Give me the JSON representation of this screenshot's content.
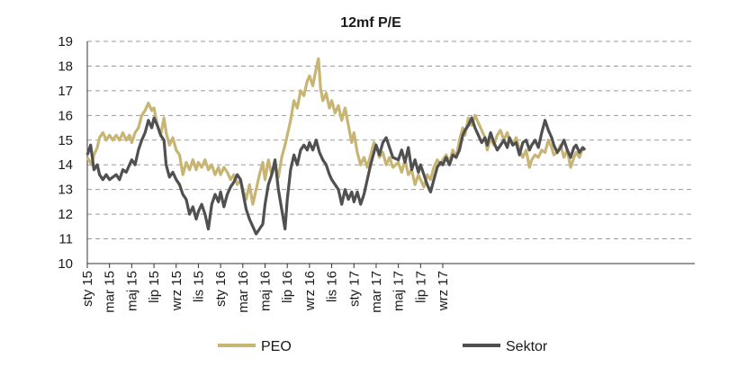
{
  "chart_data": {
    "type": "line",
    "title": "12mf P/E",
    "xlabel": "",
    "ylabel": "",
    "ylim": [
      10,
      19
    ],
    "yticks": [
      10,
      11,
      12,
      13,
      14,
      15,
      16,
      17,
      18,
      19
    ],
    "grid": "horizontal dashed",
    "legend_position": "bottom",
    "x_tick_labels": [
      "sty 15",
      "mar 15",
      "maj 15",
      "lip 15",
      "wrz 15",
      "lis 15",
      "sty 16",
      "mar 16",
      "maj 16",
      "lip 16",
      "wrz 16",
      "lis 16",
      "sty 17",
      "mar 17",
      "maj 17",
      "lip 17",
      "wrz 17"
    ],
    "x_unit": "months since sty 15 (index of monthly ticks)",
    "series": [
      {
        "name": "PEO",
        "color": "#c8b574",
        "points": [
          [
            0.0,
            14.3
          ],
          [
            0.2,
            14.0
          ],
          [
            0.3,
            14.4
          ],
          [
            0.45,
            14.7
          ],
          [
            0.55,
            15.1
          ],
          [
            0.7,
            15.3
          ],
          [
            0.85,
            15.0
          ],
          [
            1.0,
            15.2
          ],
          [
            1.15,
            15.0
          ],
          [
            1.3,
            15.2
          ],
          [
            1.45,
            15.0
          ],
          [
            1.6,
            15.3
          ],
          [
            1.75,
            15.0
          ],
          [
            1.9,
            15.2
          ],
          [
            2.0,
            14.9
          ],
          [
            2.15,
            15.3
          ],
          [
            2.3,
            15.5
          ],
          [
            2.45,
            16.0
          ],
          [
            2.6,
            16.2
          ],
          [
            2.75,
            16.5
          ],
          [
            2.9,
            16.2
          ],
          [
            3.0,
            16.3
          ],
          [
            3.15,
            15.6
          ],
          [
            3.3,
            15.2
          ],
          [
            3.45,
            15.9
          ],
          [
            3.55,
            15.3
          ],
          [
            3.7,
            14.8
          ],
          [
            3.85,
            15.1
          ],
          [
            4.0,
            14.6
          ],
          [
            4.15,
            14.4
          ],
          [
            4.3,
            13.6
          ],
          [
            4.45,
            14.1
          ],
          [
            4.6,
            13.8
          ],
          [
            4.75,
            14.2
          ],
          [
            4.9,
            13.8
          ],
          [
            5.0,
            14.1
          ],
          [
            5.15,
            13.9
          ],
          [
            5.3,
            14.2
          ],
          [
            5.45,
            13.8
          ],
          [
            5.6,
            14.0
          ],
          [
            5.75,
            13.6
          ],
          [
            5.9,
            13.9
          ],
          [
            6.0,
            13.6
          ],
          [
            6.15,
            13.9
          ],
          [
            6.3,
            13.7
          ],
          [
            6.45,
            13.4
          ],
          [
            6.6,
            13.6
          ],
          [
            6.75,
            13.2
          ],
          [
            6.9,
            13.4
          ],
          [
            7.0,
            13.0
          ],
          [
            7.15,
            12.6
          ],
          [
            7.3,
            13.2
          ],
          [
            7.45,
            12.4
          ],
          [
            7.6,
            13.0
          ],
          [
            7.75,
            13.6
          ],
          [
            7.9,
            14.1
          ],
          [
            8.0,
            13.4
          ],
          [
            8.15,
            14.2
          ],
          [
            8.3,
            13.6
          ],
          [
            8.45,
            14.0
          ],
          [
            8.6,
            13.5
          ],
          [
            8.75,
            14.3
          ],
          [
            8.9,
            14.8
          ],
          [
            9.0,
            15.2
          ],
          [
            9.15,
            15.8
          ],
          [
            9.3,
            16.6
          ],
          [
            9.45,
            16.3
          ],
          [
            9.6,
            17.0
          ],
          [
            9.75,
            16.8
          ],
          [
            9.9,
            17.4
          ],
          [
            10.0,
            17.6
          ],
          [
            10.15,
            17.2
          ],
          [
            10.3,
            17.9
          ],
          [
            10.4,
            18.3
          ],
          [
            10.5,
            17.1
          ],
          [
            10.6,
            16.6
          ],
          [
            10.75,
            16.9
          ],
          [
            10.9,
            16.3
          ],
          [
            11.0,
            16.6
          ],
          [
            11.15,
            16.1
          ],
          [
            11.3,
            16.4
          ],
          [
            11.45,
            15.8
          ],
          [
            11.6,
            16.3
          ],
          [
            11.75,
            15.6
          ],
          [
            11.9,
            14.9
          ],
          [
            12.0,
            15.3
          ],
          [
            12.15,
            14.5
          ],
          [
            12.3,
            14.0
          ],
          [
            12.45,
            14.3
          ],
          [
            12.6,
            13.9
          ],
          [
            12.75,
            14.4
          ],
          [
            12.9,
            14.9
          ],
          [
            13.0,
            14.8
          ],
          [
            13.15,
            14.3
          ],
          [
            13.3,
            14.5
          ],
          [
            13.45,
            14.0
          ],
          [
            13.6,
            14.3
          ],
          [
            13.75,
            13.9
          ],
          [
            14.0,
            14.1
          ],
          [
            14.15,
            13.7
          ],
          [
            14.3,
            14.2
          ],
          [
            14.45,
            13.6
          ],
          [
            14.6,
            13.8
          ],
          [
            14.75,
            13.2
          ],
          [
            14.9,
            13.6
          ],
          [
            15.0,
            13.4
          ],
          [
            15.15,
            13.1
          ],
          [
            15.3,
            13.6
          ],
          [
            15.45,
            13.4
          ],
          [
            15.6,
            13.9
          ],
          [
            15.75,
            14.2
          ],
          [
            15.9,
            14.0
          ],
          [
            16.0,
            14.2
          ],
          [
            16.15,
            14.4
          ],
          [
            16.3,
            14.1
          ],
          [
            16.45,
            14.6
          ],
          [
            16.6,
            14.3
          ],
          [
            16.75,
            15.0
          ],
          [
            16.9,
            15.5
          ],
          [
            17.0,
            15.2
          ],
          [
            17.15,
            15.9
          ],
          [
            17.3,
            15.6
          ],
          [
            17.45,
            16.0
          ],
          [
            17.6,
            15.7
          ],
          [
            17.75,
            15.4
          ],
          [
            17.9,
            15.1
          ],
          [
            18.0,
            14.6
          ],
          [
            18.15,
            15.1
          ],
          [
            18.3,
            14.8
          ],
          [
            18.45,
            15.2
          ],
          [
            18.6,
            15.4
          ],
          [
            18.75,
            15.0
          ],
          [
            18.9,
            15.3
          ],
          [
            19.0,
            15.0
          ],
          [
            19.15,
            14.8
          ],
          [
            19.3,
            15.1
          ],
          [
            19.45,
            14.6
          ],
          [
            19.6,
            14.3
          ],
          [
            19.75,
            14.6
          ],
          [
            19.9,
            13.9
          ],
          [
            20.0,
            14.2
          ],
          [
            20.15,
            14.4
          ],
          [
            20.3,
            14.3
          ],
          [
            20.45,
            14.6
          ],
          [
            20.6,
            14.5
          ],
          [
            20.75,
            15.0
          ],
          [
            20.9,
            14.7
          ],
          [
            21.0,
            14.4
          ],
          [
            21.15,
            14.5
          ],
          [
            21.3,
            14.8
          ],
          [
            21.45,
            14.3
          ],
          [
            21.6,
            14.6
          ],
          [
            21.75,
            13.9
          ],
          [
            21.9,
            14.3
          ],
          [
            22.0,
            14.5
          ],
          [
            22.15,
            14.3
          ],
          [
            22.3,
            14.7
          ],
          [
            22.4,
            14.6
          ]
        ]
      },
      {
        "name": "Sektor",
        "color": "#505050",
        "points": [
          [
            0.0,
            14.4
          ],
          [
            0.15,
            14.8
          ],
          [
            0.3,
            13.8
          ],
          [
            0.45,
            14.0
          ],
          [
            0.55,
            13.6
          ],
          [
            0.7,
            13.4
          ],
          [
            0.85,
            13.6
          ],
          [
            1.0,
            13.4
          ],
          [
            1.15,
            13.5
          ],
          [
            1.3,
            13.6
          ],
          [
            1.45,
            13.4
          ],
          [
            1.6,
            13.8
          ],
          [
            1.75,
            13.7
          ],
          [
            1.9,
            14.0
          ],
          [
            2.0,
            14.2
          ],
          [
            2.15,
            14.0
          ],
          [
            2.3,
            14.6
          ],
          [
            2.45,
            15.0
          ],
          [
            2.6,
            15.3
          ],
          [
            2.75,
            15.8
          ],
          [
            2.9,
            15.5
          ],
          [
            3.0,
            15.9
          ],
          [
            3.15,
            15.6
          ],
          [
            3.3,
            15.2
          ],
          [
            3.45,
            15.0
          ],
          [
            3.55,
            14.0
          ],
          [
            3.7,
            13.5
          ],
          [
            3.85,
            13.7
          ],
          [
            4.0,
            13.4
          ],
          [
            4.15,
            13.2
          ],
          [
            4.3,
            12.8
          ],
          [
            4.45,
            12.6
          ],
          [
            4.6,
            12.0
          ],
          [
            4.75,
            12.3
          ],
          [
            4.9,
            11.8
          ],
          [
            5.0,
            12.1
          ],
          [
            5.15,
            12.4
          ],
          [
            5.3,
            12.0
          ],
          [
            5.45,
            11.4
          ],
          [
            5.6,
            12.4
          ],
          [
            5.75,
            12.8
          ],
          [
            5.9,
            12.5
          ],
          [
            6.0,
            12.9
          ],
          [
            6.15,
            12.3
          ],
          [
            6.3,
            12.8
          ],
          [
            6.45,
            13.1
          ],
          [
            6.6,
            13.3
          ],
          [
            6.75,
            13.6
          ],
          [
            6.9,
            13.4
          ],
          [
            7.0,
            12.9
          ],
          [
            7.15,
            12.2
          ],
          [
            7.3,
            11.8
          ],
          [
            7.45,
            11.5
          ],
          [
            7.6,
            11.2
          ],
          [
            7.75,
            11.4
          ],
          [
            7.9,
            11.6
          ],
          [
            8.0,
            12.4
          ],
          [
            8.15,
            13.2
          ],
          [
            8.3,
            13.6
          ],
          [
            8.45,
            14.2
          ],
          [
            8.6,
            13.0
          ],
          [
            8.75,
            12.2
          ],
          [
            8.9,
            11.4
          ],
          [
            9.0,
            12.6
          ],
          [
            9.15,
            13.8
          ],
          [
            9.3,
            14.4
          ],
          [
            9.45,
            14.0
          ],
          [
            9.6,
            14.6
          ],
          [
            9.75,
            14.8
          ],
          [
            9.9,
            14.6
          ],
          [
            10.0,
            14.9
          ],
          [
            10.15,
            14.6
          ],
          [
            10.3,
            15.0
          ],
          [
            10.45,
            14.5
          ],
          [
            10.6,
            14.2
          ],
          [
            10.75,
            14.0
          ],
          [
            10.9,
            13.6
          ],
          [
            11.0,
            13.4
          ],
          [
            11.15,
            13.2
          ],
          [
            11.3,
            13.0
          ],
          [
            11.45,
            12.4
          ],
          [
            11.6,
            13.0
          ],
          [
            11.75,
            12.6
          ],
          [
            11.9,
            12.9
          ],
          [
            12.0,
            12.5
          ],
          [
            12.15,
            12.9
          ],
          [
            12.3,
            12.4
          ],
          [
            12.45,
            12.8
          ],
          [
            12.6,
            13.4
          ],
          [
            12.75,
            14.0
          ],
          [
            12.9,
            14.5
          ],
          [
            13.0,
            14.8
          ],
          [
            13.15,
            14.4
          ],
          [
            13.3,
            14.9
          ],
          [
            13.45,
            15.1
          ],
          [
            13.6,
            14.7
          ],
          [
            13.75,
            14.3
          ],
          [
            14.0,
            14.2
          ],
          [
            14.15,
            14.6
          ],
          [
            14.3,
            14.1
          ],
          [
            14.45,
            14.7
          ],
          [
            14.6,
            13.8
          ],
          [
            14.75,
            14.2
          ],
          [
            14.9,
            13.7
          ],
          [
            15.0,
            14.0
          ],
          [
            15.15,
            13.6
          ],
          [
            15.3,
            13.2
          ],
          [
            15.45,
            12.9
          ],
          [
            15.6,
            13.4
          ],
          [
            15.75,
            13.9
          ],
          [
            15.9,
            14.1
          ],
          [
            16.0,
            14.0
          ],
          [
            16.15,
            14.3
          ],
          [
            16.3,
            14.0
          ],
          [
            16.45,
            14.4
          ],
          [
            16.6,
            14.3
          ],
          [
            16.75,
            14.6
          ],
          [
            16.9,
            15.2
          ],
          [
            17.0,
            15.4
          ],
          [
            17.15,
            15.6
          ],
          [
            17.3,
            15.9
          ],
          [
            17.45,
            15.5
          ],
          [
            17.6,
            15.2
          ],
          [
            17.75,
            14.9
          ],
          [
            17.9,
            15.1
          ],
          [
            18.0,
            14.8
          ],
          [
            18.15,
            15.3
          ],
          [
            18.3,
            14.9
          ],
          [
            18.45,
            14.6
          ],
          [
            18.6,
            14.8
          ],
          [
            18.75,
            15.0
          ],
          [
            18.9,
            14.7
          ],
          [
            19.0,
            15.1
          ],
          [
            19.15,
            14.8
          ],
          [
            19.3,
            14.9
          ],
          [
            19.45,
            14.4
          ],
          [
            19.6,
            14.9
          ],
          [
            19.75,
            15.0
          ],
          [
            19.9,
            14.6
          ],
          [
            20.0,
            14.8
          ],
          [
            20.15,
            15.0
          ],
          [
            20.3,
            14.7
          ],
          [
            20.45,
            15.3
          ],
          [
            20.6,
            15.8
          ],
          [
            20.75,
            15.4
          ],
          [
            20.9,
            15.1
          ],
          [
            21.0,
            14.8
          ],
          [
            21.15,
            14.5
          ],
          [
            21.3,
            14.7
          ],
          [
            21.45,
            15.0
          ],
          [
            21.6,
            14.6
          ],
          [
            21.75,
            14.3
          ],
          [
            21.9,
            14.7
          ],
          [
            22.0,
            14.8
          ],
          [
            22.15,
            14.5
          ],
          [
            22.3,
            14.7
          ],
          [
            22.4,
            14.6
          ]
        ]
      }
    ]
  }
}
